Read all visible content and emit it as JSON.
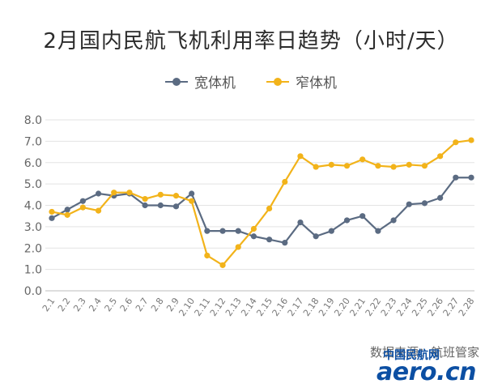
{
  "chart_data": {
    "type": "line",
    "title": "2月国内民航飞机利用率日趋势（小时/天）",
    "categories": [
      "2.1",
      "2.2",
      "2.3",
      "2.4",
      "2.5",
      "2.6",
      "2.7",
      "2.8",
      "2.9",
      "2.10",
      "2.11",
      "2.12",
      "2.13",
      "2.14",
      "2.15",
      "2.16",
      "2.17",
      "2.18",
      "2.19",
      "2.20",
      "2.21",
      "2.22",
      "2.23",
      "2.24",
      "2.25",
      "2.26",
      "2.27",
      "2.28"
    ],
    "series": [
      {
        "name": "宽体机",
        "color": "#5b6b82",
        "values": [
          3.4,
          3.8,
          4.2,
          4.55,
          4.45,
          4.55,
          4.0,
          4.0,
          3.95,
          4.55,
          2.8,
          2.8,
          2.8,
          2.55,
          2.4,
          2.25,
          3.2,
          2.55,
          2.8,
          3.3,
          3.5,
          2.8,
          3.3,
          4.05,
          4.1,
          4.35,
          5.3,
          5.3
        ]
      },
      {
        "name": "窄体机",
        "color": "#f2b31a",
        "values": [
          3.7,
          3.55,
          3.9,
          3.75,
          4.6,
          4.6,
          4.3,
          4.5,
          4.45,
          4.2,
          1.65,
          1.2,
          2.05,
          2.9,
          3.85,
          5.1,
          6.3,
          5.8,
          5.9,
          5.85,
          6.15,
          5.85,
          5.8,
          5.9,
          5.85,
          6.3,
          6.95,
          7.05
        ]
      }
    ],
    "ylim": [
      0,
      8
    ],
    "yticks": [
      "0.0",
      "1.0",
      "2.0",
      "3.0",
      "4.0",
      "5.0",
      "6.0",
      "7.0",
      "8.0"
    ],
    "grid": true,
    "legend_position": "top-center"
  },
  "source_text": "数据来源：航班管家",
  "logo": {
    "cn": "中国民航网",
    "en": "aero.cn"
  }
}
